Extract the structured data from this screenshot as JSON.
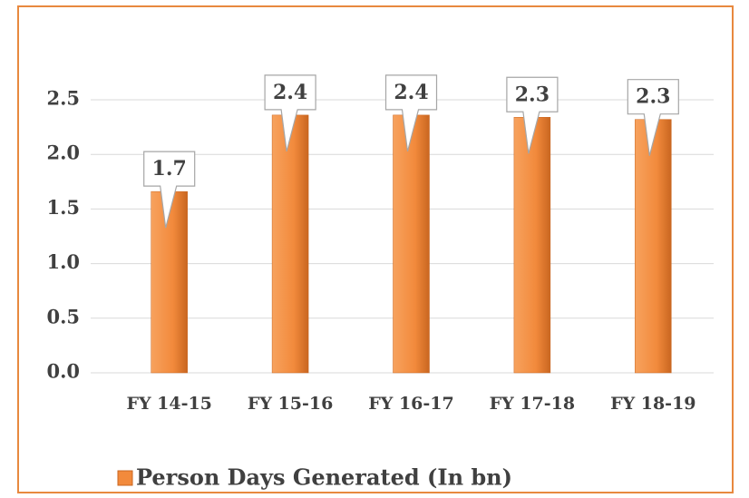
{
  "chart_data": {
    "type": "bar",
    "categories": [
      "FY 14-15",
      "FY 15-16",
      "FY 16-17",
      "FY 17-18",
      "FY 18-19"
    ],
    "series": [
      {
        "name": "Person Days Generated (In bn)",
        "color": "#f28a3c",
        "values": [
          1.66,
          2.36,
          2.36,
          2.34,
          2.32
        ],
        "value_labels": [
          "1.7",
          "2.4",
          "2.4",
          "2.3",
          "2.3"
        ]
      }
    ],
    "ylim": [
      0,
      2.5
    ],
    "yticks": [
      {
        "value": 0,
        "label": "0.0"
      },
      0.5,
      {
        "value": 1,
        "label": "1.0"
      },
      1.5,
      {
        "value": 2,
        "label": "2.0"
      },
      2.5
    ],
    "grid": true,
    "legend": "bottom"
  }
}
